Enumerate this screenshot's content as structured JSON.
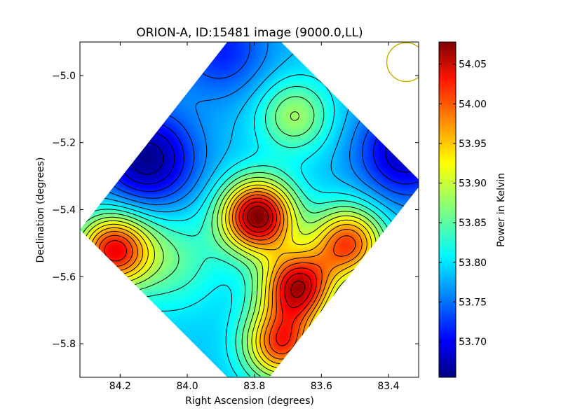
{
  "chart_data": {
    "type": "heatmap",
    "title": "ORION-A, ID:15481 image (9000.0,LL)",
    "xlabel": "Right Ascension (degrees)",
    "ylabel": "Declination (degrees)",
    "colorbar_label": "Power in Kelvin",
    "xlim": [
      84.32,
      83.31
    ],
    "ylim": [
      -5.9,
      -4.9
    ],
    "x_ticks": [
      84.2,
      84.0,
      83.8,
      83.6,
      83.4
    ],
    "x_tick_labels": [
      "84.2",
      "84.0",
      "83.8",
      "83.6",
      "83.4"
    ],
    "y_ticks": [
      -5.0,
      -5.2,
      -5.4,
      -5.6,
      -5.8
    ],
    "y_tick_labels": [
      "−5.0",
      "−5.2",
      "−5.4",
      "−5.6",
      "−5.8"
    ],
    "colorbar_range": [
      53.655,
      54.078
    ],
    "colorbar_ticks": [
      53.7,
      53.75,
      53.8,
      53.85,
      53.9,
      53.95,
      54.0,
      54.05
    ],
    "colorbar_tick_labels": [
      "53.70",
      "53.75",
      "53.80",
      "53.85",
      "53.90",
      "53.95",
      "54.00",
      "54.05"
    ],
    "colormap": "jet",
    "contour_color": "#000000",
    "beam": {
      "ra": 83.347,
      "dec": -4.96,
      "radius_deg": 0.058,
      "color": "#c8b400"
    },
    "map_extent_corners": {
      "top": [
        83.81,
        -4.81
      ],
      "right": [
        83.3,
        -5.32
      ],
      "bottom": [
        83.81,
        -5.97
      ],
      "left": [
        84.32,
        -5.46
      ]
    },
    "features": [
      {
        "kind": "peak",
        "ra": 83.79,
        "dec": -5.42,
        "value": 54.078
      },
      {
        "kind": "peak",
        "ra": 83.67,
        "dec": -5.63,
        "value": 54.045
      },
      {
        "kind": "peak",
        "ra": 83.52,
        "dec": -5.5,
        "value": 53.995
      },
      {
        "kind": "peak",
        "ra": 84.22,
        "dec": -5.52,
        "value": 54.02
      },
      {
        "kind": "peak",
        "ra": 83.72,
        "dec": -5.8,
        "value": 54.0
      },
      {
        "kind": "peak",
        "ra": 83.68,
        "dec": -5.12,
        "value": 53.88
      },
      {
        "kind": "trough",
        "ra": 84.12,
        "dec": -5.25,
        "value": 53.66
      },
      {
        "kind": "trough",
        "ra": 83.35,
        "dec": -5.23,
        "value": 53.68
      },
      {
        "kind": "trough",
        "ra": 83.9,
        "dec": -4.92,
        "value": 53.72
      },
      {
        "kind": "trough",
        "ra": 84.05,
        "dec": -5.55,
        "value": 53.85
      }
    ]
  }
}
